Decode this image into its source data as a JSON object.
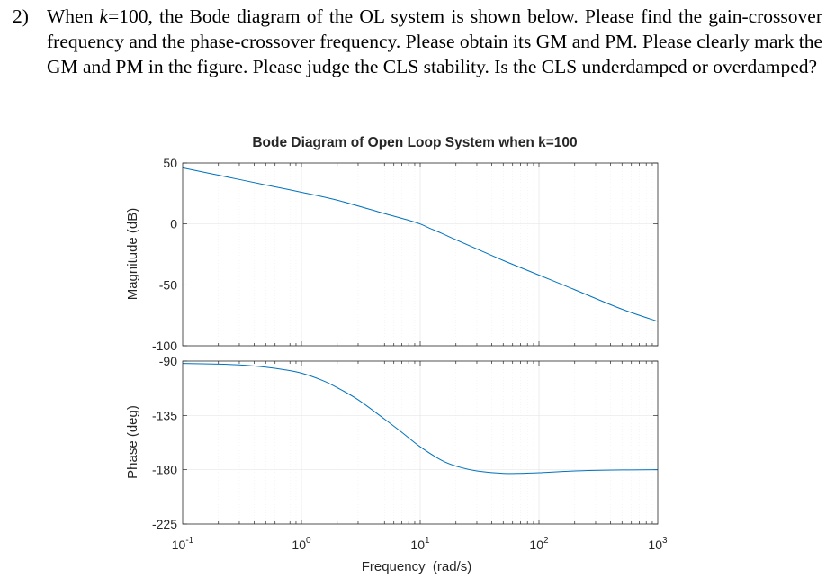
{
  "question": {
    "number": "2)",
    "text_before_var": "When ",
    "variable": "k",
    "text_after_var": "=100, the Bode diagram of the OL system is shown below. Please find the gain-crossover frequency and the phase-crossover frequency. Please obtain its GM and PM. Please clearly mark the GM and PM in the figure. Please judge the CLS stability. Is the CLS underdamped or overdamped?"
  },
  "chart_data": {
    "type": "line",
    "title": "Bode Diagram of Open Loop System when k=100",
    "xlabel": "Frequency  (rad/s)",
    "x_scale": "log",
    "xlim": [
      0.1,
      1000
    ],
    "x_ticks": [
      0.1,
      1,
      10,
      100,
      1000
    ],
    "x_tick_labels": [
      {
        "base": "10",
        "exp": "-1"
      },
      {
        "base": "10",
        "exp": "0"
      },
      {
        "base": "10",
        "exp": "1"
      },
      {
        "base": "10",
        "exp": "2"
      },
      {
        "base": "10",
        "exp": "3"
      }
    ],
    "grid": true,
    "line_color": "#0072BD",
    "magnitude": {
      "ylabel": "Magnitude (dB)",
      "ylim": [
        -100,
        50
      ],
      "y_ticks": [
        -100,
        -50,
        0,
        50
      ],
      "y_tick_labels": [
        "-100",
        "-50",
        "0",
        "50"
      ],
      "x": [
        0.1,
        0.2,
        0.5,
        1,
        2,
        5,
        8,
        10,
        12,
        15,
        20,
        30,
        50,
        100,
        200,
        500,
        1000
      ],
      "y": [
        46,
        40,
        32,
        26,
        19.5,
        8.5,
        3,
        0,
        -3.5,
        -7.5,
        -13,
        -20.5,
        -30,
        -42,
        -54,
        -70,
        -80
      ]
    },
    "phase": {
      "ylabel": "Phase (deg)",
      "ylim": [
        -225,
        -90
      ],
      "y_ticks": [
        -225,
        -180,
        -135,
        -90
      ],
      "y_tick_labels": [
        "-225",
        "-180",
        "-135",
        "-90"
      ],
      "x": [
        0.1,
        0.2,
        0.3,
        0.5,
        0.7,
        1,
        1.5,
        2,
        3,
        5,
        7,
        10,
        15,
        20,
        30,
        50,
        70,
        100,
        200,
        500,
        1000
      ],
      "y": [
        -92,
        -92.5,
        -93.2,
        -95,
        -97,
        -100,
        -106,
        -112,
        -122,
        -138,
        -149,
        -161,
        -172,
        -177,
        -181,
        -183,
        -183,
        -182.5,
        -181,
        -180.2,
        -180
      ]
    }
  }
}
